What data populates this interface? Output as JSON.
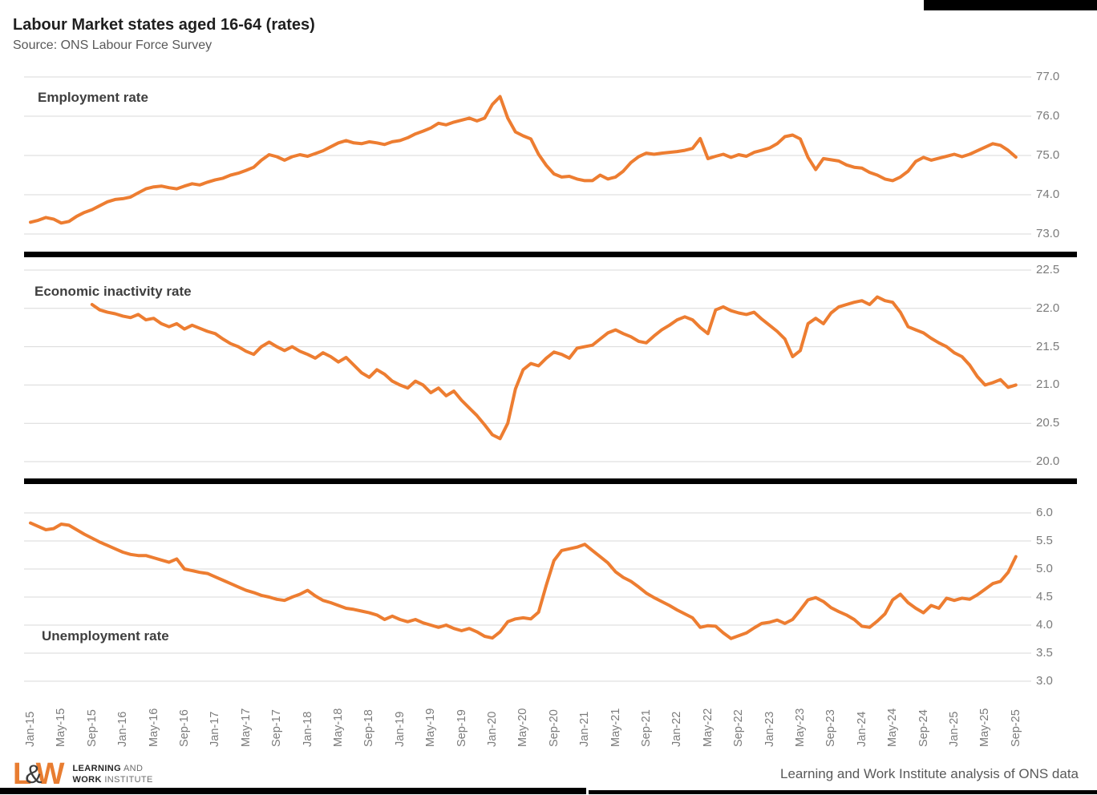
{
  "header": {
    "title": "Labour Market states aged 16-64 (rates)",
    "subtitle": "Source: ONS Labour Force Survey"
  },
  "colors": {
    "line": "#ED7D31",
    "grid": "#D9D9D9",
    "axis_text": "#7B7B7B",
    "panel_title_text": "#3F3F3F",
    "separator": "#000000"
  },
  "x_axis": {
    "frequency": "monthly",
    "tick_every_months": 4,
    "tick_labels": [
      "Jan-15",
      "May-15",
      "Sep-15",
      "Jan-16",
      "May-16",
      "Sep-16",
      "Jan-17",
      "May-17",
      "Sep-17",
      "Jan-18",
      "May-18",
      "Sep-18",
      "Jan-19",
      "May-19",
      "Sep-19",
      "Jan-20",
      "May-20",
      "Sep-20",
      "Jan-21",
      "May-21",
      "Sep-21",
      "Jan-22",
      "May-22",
      "Sep-22",
      "Jan-23",
      "May-23",
      "Sep-23",
      "Jan-24",
      "May-24",
      "Sep-24",
      "Jan-25",
      "May-25",
      "Sep-25"
    ]
  },
  "chart_data": [
    {
      "type": "line",
      "title": "Employment rate",
      "x_start": "Jan-15",
      "x_end": "Sep-25",
      "ylim": [
        73.0,
        77.0
      ],
      "grid": true,
      "legend_position": "none",
      "y_ticks": [
        "77.0",
        "76.0",
        "75.0",
        "74.0",
        "73.0"
      ],
      "series": [
        {
          "name": "Employment rate aged 16-64",
          "values": [
            73.3,
            73.35,
            73.42,
            73.38,
            73.28,
            73.32,
            73.45,
            73.55,
            73.62,
            73.72,
            73.82,
            73.88,
            73.9,
            73.94,
            74.05,
            74.15,
            74.2,
            74.22,
            74.18,
            74.15,
            74.22,
            74.28,
            74.25,
            74.32,
            74.38,
            74.42,
            74.5,
            74.55,
            74.62,
            74.7,
            74.88,
            75.02,
            74.97,
            74.88,
            74.97,
            75.02,
            74.98,
            75.05,
            75.12,
            75.22,
            75.32,
            75.38,
            75.32,
            75.3,
            75.35,
            75.32,
            75.28,
            75.35,
            75.38,
            75.45,
            75.55,
            75.62,
            75.7,
            75.82,
            75.78,
            75.85,
            75.9,
            75.95,
            75.88,
            75.95,
            76.3,
            76.5,
            75.95,
            75.6,
            75.5,
            75.42,
            75.03,
            74.75,
            74.53,
            74.45,
            74.47,
            74.4,
            74.36,
            74.36,
            74.5,
            74.4,
            74.45,
            74.6,
            74.82,
            74.97,
            75.06,
            75.03,
            75.06,
            75.08,
            75.1,
            75.13,
            75.18,
            75.43,
            74.92,
            74.98,
            75.03,
            74.95,
            75.02,
            74.98,
            75.08,
            75.13,
            75.19,
            75.3,
            75.48,
            75.52,
            75.42,
            74.95,
            74.64,
            74.92,
            74.89,
            74.86,
            74.76,
            74.7,
            74.68,
            74.57,
            74.5,
            74.4,
            74.36,
            74.45,
            74.6,
            74.85,
            74.95,
            74.88,
            74.93,
            74.98,
            75.03,
            74.97,
            75.03,
            75.12,
            75.21,
            75.3,
            75.26,
            75.13,
            74.96
          ]
        }
      ]
    },
    {
      "type": "line",
      "title": "Economic inactivity rate",
      "x_start": "Jan-15",
      "x_end": "Sep-25",
      "ylim": [
        20.0,
        22.5
      ],
      "grid": true,
      "legend_position": "none",
      "y_ticks": [
        "22.5",
        "22.0",
        "21.5",
        "21.0",
        "20.5",
        "20.0"
      ],
      "series": [
        {
          "name": "Economic inactivity rate aged 16-64",
          "values": [
            null,
            null,
            null,
            null,
            null,
            null,
            null,
            null,
            22.05,
            21.98,
            21.95,
            21.93,
            21.9,
            21.88,
            21.92,
            21.85,
            21.87,
            21.8,
            21.76,
            21.8,
            21.73,
            21.78,
            21.74,
            21.7,
            21.67,
            21.6,
            21.54,
            21.5,
            21.44,
            21.4,
            21.5,
            21.56,
            21.5,
            21.45,
            21.5,
            21.44,
            21.4,
            21.35,
            21.42,
            21.37,
            21.3,
            21.36,
            21.26,
            21.16,
            21.1,
            21.2,
            21.14,
            21.05,
            21.0,
            20.96,
            21.05,
            21.0,
            20.9,
            20.96,
            20.86,
            20.92,
            20.8,
            20.7,
            20.6,
            20.48,
            20.35,
            20.3,
            20.5,
            20.95,
            21.2,
            21.28,
            21.25,
            21.35,
            21.43,
            21.4,
            21.35,
            21.48,
            21.5,
            21.52,
            21.6,
            21.68,
            21.72,
            21.67,
            21.63,
            21.57,
            21.55,
            21.64,
            21.72,
            21.78,
            21.85,
            21.89,
            21.85,
            21.75,
            21.67,
            21.98,
            22.02,
            21.97,
            21.94,
            21.92,
            21.95,
            21.86,
            21.78,
            21.7,
            21.6,
            21.37,
            21.45,
            21.8,
            21.87,
            21.8,
            21.94,
            22.02,
            22.05,
            22.08,
            22.1,
            22.05,
            22.15,
            22.1,
            22.08,
            21.95,
            21.76,
            21.72,
            21.68,
            21.61,
            21.55,
            21.5,
            21.42,
            21.37,
            21.26,
            21.11,
            21.0,
            21.03,
            21.07,
            20.97,
            21.0
          ]
        }
      ]
    },
    {
      "type": "line",
      "title": "Unemployment rate",
      "x_start": "Jan-15",
      "x_end": "Sep-25",
      "ylim": [
        3.0,
        6.0
      ],
      "grid": true,
      "legend_position": "none",
      "y_ticks": [
        "6.0",
        "5.5",
        "5.0",
        "4.5",
        "4.0",
        "3.5",
        "3.0"
      ],
      "series": [
        {
          "name": "Unemployment rate aged 16-64",
          "values": [
            5.82,
            5.76,
            5.7,
            5.72,
            5.8,
            5.78,
            5.7,
            5.62,
            5.55,
            5.48,
            5.42,
            5.36,
            5.3,
            5.26,
            5.24,
            5.24,
            5.2,
            5.16,
            5.12,
            5.18,
            5.0,
            4.97,
            4.94,
            4.92,
            4.86,
            4.8,
            4.74,
            4.68,
            4.62,
            4.58,
            4.53,
            4.5,
            4.46,
            4.44,
            4.5,
            4.55,
            4.62,
            4.52,
            4.44,
            4.4,
            4.35,
            4.3,
            4.28,
            4.25,
            4.22,
            4.18,
            4.1,
            4.16,
            4.1,
            4.06,
            4.1,
            4.04,
            4.0,
            3.96,
            4.0,
            3.94,
            3.9,
            3.94,
            3.88,
            3.8,
            3.77,
            3.88,
            4.06,
            4.11,
            4.13,
            4.11,
            4.23,
            4.71,
            5.15,
            5.33,
            5.36,
            5.39,
            5.44,
            5.33,
            5.22,
            5.11,
            4.95,
            4.85,
            4.78,
            4.68,
            4.57,
            4.49,
            4.42,
            4.35,
            4.27,
            4.2,
            4.13,
            3.96,
            3.99,
            3.98,
            3.86,
            3.76,
            3.81,
            3.86,
            3.95,
            4.03,
            4.05,
            4.09,
            4.03,
            4.1,
            4.27,
            4.45,
            4.49,
            4.42,
            4.31,
            4.24,
            4.18,
            4.1,
            3.98,
            3.96,
            4.07,
            4.2,
            4.45,
            4.55,
            4.4,
            4.3,
            4.22,
            4.35,
            4.3,
            4.48,
            4.44,
            4.48,
            4.46,
            4.54,
            4.64,
            4.74,
            4.78,
            4.94,
            5.22
          ]
        }
      ]
    }
  ],
  "footer": {
    "logo": {
      "letter_l": "L",
      "ampersand": "&",
      "letter_w": "W",
      "line1_bold": "LEARNING",
      "line1_rest": " AND",
      "line2_bold": "WORK",
      "line2_rest": " INSTITUTE"
    },
    "caption": "Learning and Work Institute analysis of ONS data"
  }
}
